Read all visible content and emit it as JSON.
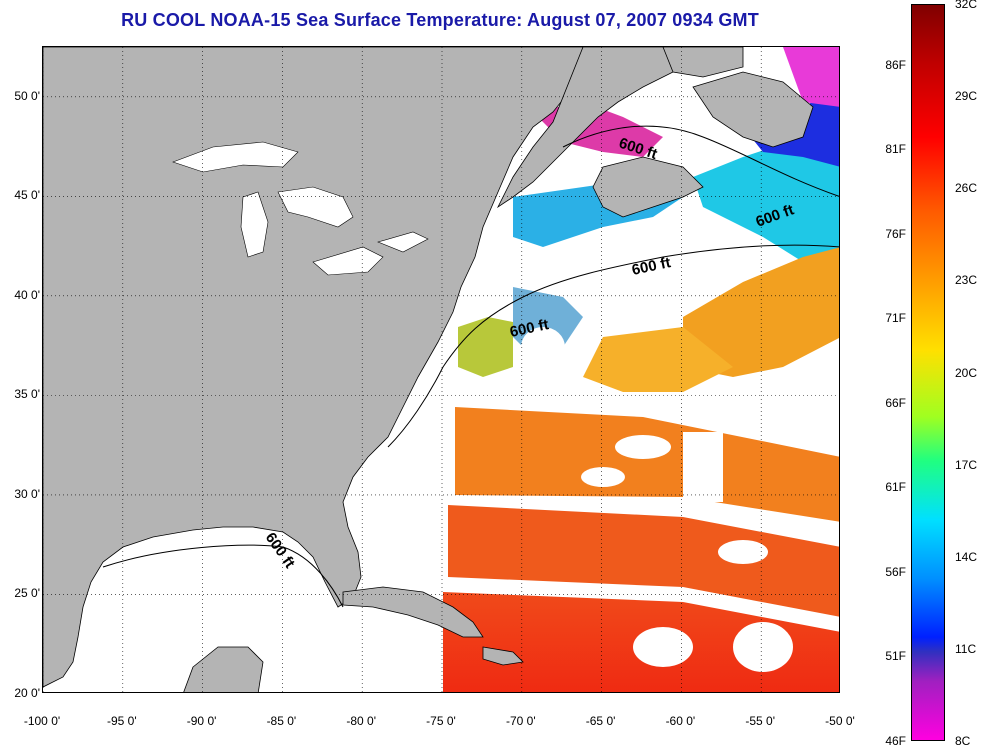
{
  "title": "RU COOL  NOAA-15  Sea Surface Temperature:  August 07, 2007 0934 GMT",
  "map": {
    "lon_range": [
      -100,
      -50
    ],
    "lat_range": [
      20,
      52.5
    ],
    "lat_ticks": [
      {
        "value": 50,
        "label": "50 0'"
      },
      {
        "value": 45,
        "label": "45 0'"
      },
      {
        "value": 40,
        "label": "40 0'"
      },
      {
        "value": 35,
        "label": "35 0'"
      },
      {
        "value": 30,
        "label": "30 0'"
      },
      {
        "value": 25,
        "label": "25 0'"
      },
      {
        "value": 20,
        "label": "20 0'"
      }
    ],
    "lon_ticks": [
      {
        "value": -100,
        "label": "-100 0'"
      },
      {
        "value": -95,
        "label": "-95 0'"
      },
      {
        "value": -90,
        "label": "-90 0'"
      },
      {
        "value": -85,
        "label": "-85 0'"
      },
      {
        "value": -80,
        "label": "-80 0'"
      },
      {
        "value": -75,
        "label": "-75 0'"
      },
      {
        "value": -70,
        "label": "-70 0'"
      },
      {
        "value": -65,
        "label": "-65 0'"
      },
      {
        "value": -60,
        "label": "-60 0'"
      },
      {
        "value": -55,
        "label": "-55 0'"
      },
      {
        "value": -50,
        "label": "-50 0'"
      }
    ],
    "grid": "dotted",
    "land_color": "#b4b4b4",
    "cloud_color": "#ffffff",
    "contour_label": "600 ft"
  },
  "colorbar": {
    "celsius_range": [
      8,
      32
    ],
    "fahrenheit_range": [
      46,
      89.6
    ],
    "celsius_labels": [
      "32C",
      "29C",
      "26C",
      "23C",
      "20C",
      "17C",
      "14C",
      "11C",
      "8C"
    ],
    "fahrenheit_labels": [
      "86F",
      "81F",
      "76F",
      "71F",
      "66F",
      "61F",
      "56F",
      "51F",
      "46F"
    ],
    "fahrenheit_values": [
      86,
      81,
      76,
      71,
      66,
      61,
      56,
      51,
      46
    ]
  }
}
